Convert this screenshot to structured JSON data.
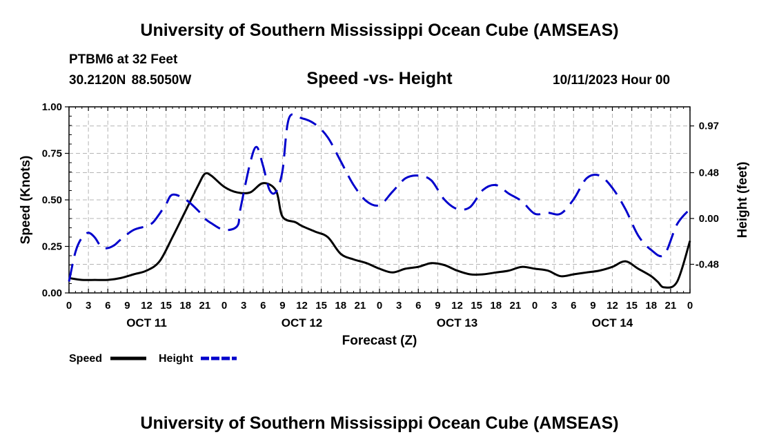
{
  "header": {
    "title": "University of Southern Mississippi Ocean Cube (AMSEAS)",
    "station": "PTBM6 at 32 Feet",
    "coordinates": "30.2120N  88.5050W",
    "chart_title": "Speed -vs- Height",
    "datetime": "10/11/2023 Hour 00"
  },
  "footer": {
    "title": "University of Southern Mississippi Ocean Cube (AMSEAS)"
  },
  "colors": {
    "speed": "#000000",
    "height": "#0000cc",
    "grid": "#b4b4b4"
  },
  "chart_data": {
    "type": "line",
    "title": "Speed -vs- Height",
    "xlabel": "Forecast (Z)",
    "ylabel": "Speed (Knots)",
    "y2label": "Height (feet)",
    "x_unit": "forecast hour",
    "xlim": [
      0,
      96
    ],
    "ylim": [
      0,
      1
    ],
    "y2lim": [
      -0.78,
      1.17
    ],
    "x_ticks": [
      0,
      3,
      6,
      9,
      12,
      15,
      18,
      21,
      24,
      27,
      30,
      33,
      36,
      39,
      42,
      45,
      48,
      51,
      54,
      57,
      60,
      63,
      66,
      69,
      72,
      75,
      78,
      81,
      84,
      87,
      90,
      93,
      96
    ],
    "x_tick_labels": [
      "0",
      "3",
      "6",
      "9",
      "12",
      "15",
      "18",
      "21",
      "0",
      "3",
      "6",
      "9",
      "12",
      "15",
      "18",
      "21",
      "0",
      "3",
      "6",
      "9",
      "12",
      "15",
      "18",
      "21",
      "0",
      "3",
      "6",
      "9",
      "12",
      "15",
      "18",
      "21",
      "0"
    ],
    "day_labels": [
      {
        "label": "OCT 11",
        "hour": 12
      },
      {
        "label": "OCT 12",
        "hour": 36
      },
      {
        "label": "OCT 13",
        "hour": 60
      },
      {
        "label": "OCT 14",
        "hour": 84
      }
    ],
    "y_ticks": [
      0,
      0.25,
      0.5,
      0.75,
      1.0
    ],
    "y_tick_labels": [
      "0.00",
      "0.25",
      "0.50",
      "0.75",
      "1.00"
    ],
    "y2_ticks": [
      -0.48,
      0,
      0.48,
      0.97
    ],
    "y2_tick_labels": [
      "-0.48",
      "0.00",
      "0.48",
      "0.97"
    ],
    "grid": true,
    "series": [
      {
        "name": "Speed",
        "axis": "left",
        "style": "solid",
        "x": [
          0,
          2,
          4,
          6,
          8,
          10,
          12,
          14,
          16,
          18,
          20,
          21,
          22,
          24,
          26,
          28,
          30,
          32,
          33,
          35,
          36,
          38,
          40,
          42,
          44,
          46,
          48,
          50,
          52,
          54,
          56,
          58,
          60,
          62,
          64,
          66,
          68,
          70,
          72,
          74,
          76,
          78,
          80,
          82,
          84,
          86,
          88,
          90,
          91,
          92,
          94,
          96
        ],
        "values": [
          0.08,
          0.07,
          0.07,
          0.07,
          0.08,
          0.1,
          0.12,
          0.17,
          0.3,
          0.44,
          0.58,
          0.64,
          0.63,
          0.57,
          0.54,
          0.54,
          0.59,
          0.55,
          0.41,
          0.38,
          0.36,
          0.33,
          0.3,
          0.21,
          0.18,
          0.16,
          0.13,
          0.11,
          0.13,
          0.14,
          0.16,
          0.15,
          0.12,
          0.1,
          0.1,
          0.11,
          0.12,
          0.14,
          0.13,
          0.12,
          0.09,
          0.1,
          0.11,
          0.12,
          0.14,
          0.17,
          0.13,
          0.09,
          0.06,
          0.03,
          0.06,
          0.28
        ]
      },
      {
        "name": "Height",
        "axis": "right",
        "style": "dashed",
        "x": [
          0,
          1,
          2,
          3,
          4,
          5,
          6,
          7,
          8,
          10,
          12,
          13,
          14,
          15,
          16,
          18,
          20,
          21,
          22,
          24,
          26,
          26.5,
          28,
          29,
          30,
          31,
          32,
          33,
          34,
          36,
          38,
          40,
          42,
          44,
          46,
          48,
          50,
          52,
          54,
          56,
          58,
          60,
          62,
          64,
          66,
          68,
          70,
          72,
          74,
          76,
          78,
          80,
          82,
          84,
          86,
          88,
          90,
          92,
          94,
          96
        ],
        "values": [
          -0.66,
          -0.35,
          -0.2,
          -0.15,
          -0.2,
          -0.3,
          -0.31,
          -0.28,
          -0.22,
          -0.12,
          -0.08,
          -0.04,
          0.05,
          0.15,
          0.25,
          0.2,
          0.08,
          0.0,
          -0.05,
          -0.12,
          -0.08,
          0.1,
          0.58,
          0.75,
          0.55,
          0.3,
          0.28,
          0.5,
          1.05,
          1.05,
          0.99,
          0.85,
          0.6,
          0.35,
          0.18,
          0.14,
          0.28,
          0.42,
          0.45,
          0.4,
          0.2,
          0.1,
          0.12,
          0.3,
          0.35,
          0.26,
          0.18,
          0.05,
          0.06,
          0.05,
          0.2,
          0.42,
          0.45,
          0.32,
          0.1,
          -0.18,
          -0.33,
          -0.38,
          -0.06,
          0.1
        ]
      }
    ],
    "legend": [
      {
        "label": "Speed",
        "series": "Speed"
      },
      {
        "label": "Height",
        "series": "Height"
      }
    ],
    "legend_position": "bottom-left"
  }
}
